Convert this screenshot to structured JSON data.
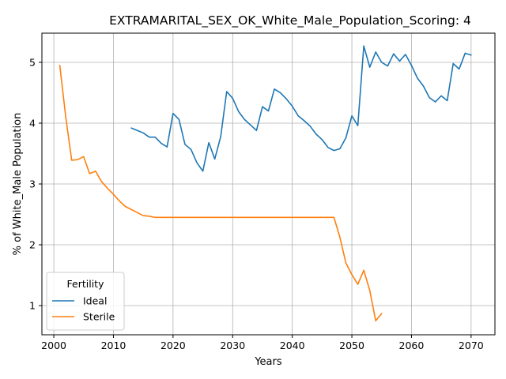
{
  "chart_data": {
    "type": "line",
    "title": "EXTRAMARITAL_SEX_OK_White_Male_Population_Scoring: 4",
    "xlabel": "Years",
    "ylabel": "% of White_Male Population",
    "xlim": [
      1998,
      2074
    ],
    "ylim": [
      0.52,
      5.48
    ],
    "xticks": [
      2000,
      2010,
      2020,
      2030,
      2040,
      2050,
      2060,
      2070
    ],
    "yticks": [
      1,
      2,
      3,
      4,
      5
    ],
    "grid": true,
    "legend": {
      "title": "Fertility",
      "placement": "lower-left"
    },
    "series": [
      {
        "name": "Ideal",
        "color": "#1f77b4",
        "x": [
          2013,
          2014,
          2015,
          2016,
          2017,
          2018,
          2019,
          2020,
          2021,
          2022,
          2023,
          2024,
          2025,
          2026,
          2027,
          2028,
          2029,
          2030,
          2031,
          2032,
          2033,
          2034,
          2035,
          2036,
          2037,
          2038,
          2039,
          2040,
          2041,
          2042,
          2043,
          2044,
          2045,
          2046,
          2047,
          2048,
          2049,
          2050,
          2051,
          2052,
          2053,
          2054,
          2055,
          2056,
          2057,
          2058,
          2059,
          2060,
          2061,
          2062,
          2063,
          2064,
          2065,
          2066,
          2067,
          2068,
          2069,
          2070
        ],
        "y": [
          3.92,
          3.88,
          3.84,
          3.77,
          3.77,
          3.67,
          3.61,
          4.16,
          4.06,
          3.65,
          3.57,
          3.35,
          3.21,
          3.68,
          3.41,
          3.78,
          4.52,
          4.41,
          4.19,
          4.06,
          3.97,
          3.88,
          4.27,
          4.2,
          4.56,
          4.5,
          4.4,
          4.28,
          4.12,
          4.04,
          3.95,
          3.82,
          3.73,
          3.6,
          3.55,
          3.58,
          3.76,
          4.12,
          3.96,
          5.27,
          4.92,
          5.17,
          5.0,
          4.94,
          5.14,
          5.02,
          5.13,
          4.95,
          4.74,
          4.61,
          4.42,
          4.35,
          4.45,
          4.37,
          4.98,
          4.89,
          5.15,
          5.12
        ]
      },
      {
        "name": "Sterile",
        "color": "#ff7f0e",
        "x": [
          2001,
          2002,
          2003,
          2004,
          2005,
          2006,
          2007,
          2008,
          2009,
          2010,
          2011,
          2012,
          2013,
          2014,
          2015,
          2016,
          2017,
          2018,
          2019,
          2020,
          2021,
          2022,
          2023,
          2024,
          2025,
          2026,
          2027,
          2028,
          2029,
          2030,
          2031,
          2032,
          2033,
          2034,
          2035,
          2036,
          2037,
          2038,
          2039,
          2040,
          2041,
          2042,
          2043,
          2044,
          2045,
          2046,
          2047,
          2048,
          2049,
          2050,
          2051,
          2052,
          2053,
          2054,
          2055
        ],
        "y": [
          4.95,
          4.1,
          3.39,
          3.4,
          3.45,
          3.17,
          3.21,
          3.04,
          2.93,
          2.83,
          2.72,
          2.63,
          2.58,
          2.53,
          2.48,
          2.47,
          2.45,
          2.45,
          2.45,
          2.45,
          2.45,
          2.45,
          2.45,
          2.45,
          2.45,
          2.45,
          2.45,
          2.45,
          2.45,
          2.45,
          2.45,
          2.45,
          2.45,
          2.45,
          2.45,
          2.45,
          2.45,
          2.45,
          2.45,
          2.45,
          2.45,
          2.45,
          2.45,
          2.45,
          2.45,
          2.45,
          2.45,
          2.12,
          1.7,
          1.51,
          1.35,
          1.58,
          1.25,
          0.75,
          0.87
        ]
      }
    ]
  }
}
